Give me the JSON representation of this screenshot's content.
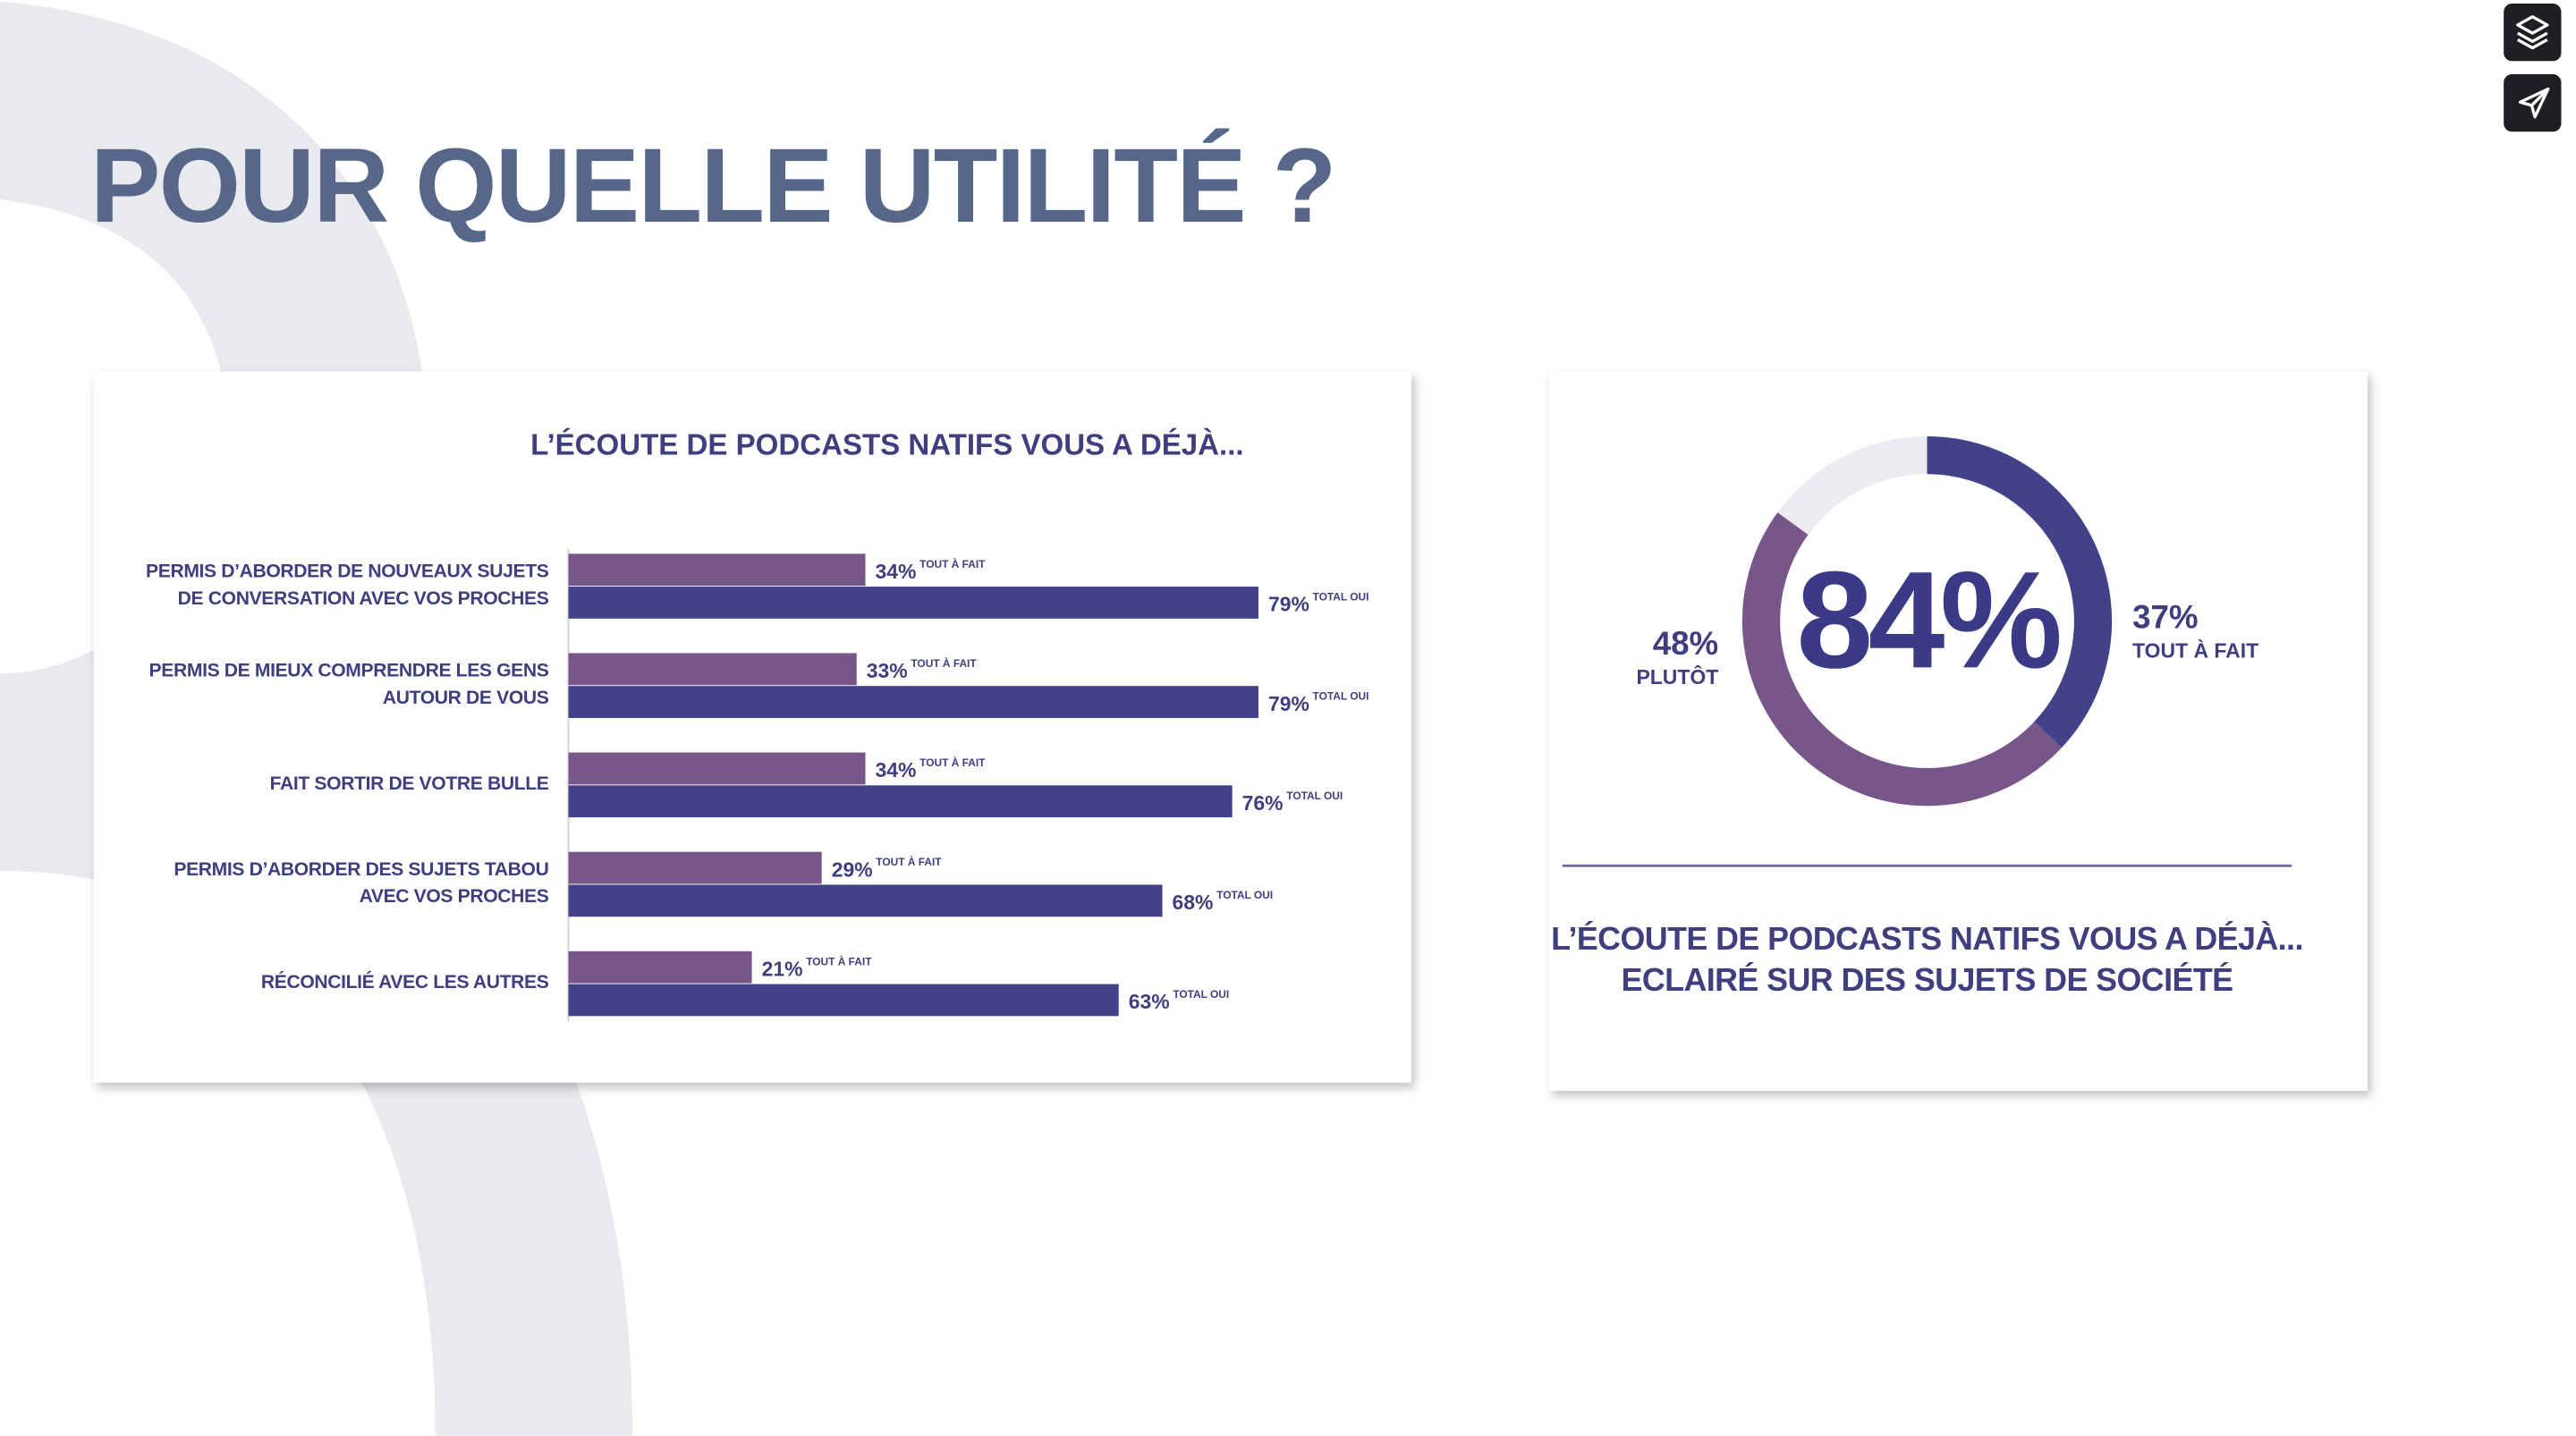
{
  "slide_title": "POUR QUELLE UTILITÉ ?",
  "chart_data": [
    {
      "type": "bar",
      "orientation": "horizontal",
      "title": "L’ÉCOUTE DE PODCASTS NATIFS VOUS A DÉJÀ...",
      "categories": [
        [
          "PERMIS D’ABORDER DE NOUVEAUX SUJETS",
          "DE CONVERSATION AVEC VOS PROCHES"
        ],
        [
          "PERMIS DE MIEUX COMPRENDRE LES GENS",
          "AUTOUR DE VOUS"
        ],
        [
          "FAIT SORTIR DE VOTRE BULLE"
        ],
        [
          "PERMIS D’ABORDER DES SUJETS TABOU",
          "AVEC VOS PROCHES"
        ],
        [
          "RÉCONCILIÉ AVEC LES AUTRES"
        ]
      ],
      "series": [
        {
          "name": "TOUT À FAIT",
          "color": "#77578a",
          "values": [
            34,
            33,
            34,
            29,
            21
          ],
          "value_labels": [
            "34%",
            "33%",
            "34%",
            "29%",
            "21%"
          ]
        },
        {
          "name": "TOTAL OUI",
          "color": "#42428a",
          "values": [
            79,
            79,
            76,
            68,
            63
          ],
          "value_labels": [
            "79%",
            "79%",
            "76%",
            "68%",
            "63%"
          ]
        }
      ]
    },
    {
      "type": "pie",
      "donut": true,
      "center_label": "84%",
      "title": [
        "L’ÉCOUTE DE PODCASTS NATIFS VOUS A DÉJÀ...",
        "ECLAIRÉ SUR DES SUJETS DE SOCIÉTÉ"
      ],
      "labels": [
        "TOUT À FAIT",
        "PLUTÔT"
      ],
      "values": [
        37,
        48
      ],
      "value_labels": [
        "37%",
        "48%"
      ],
      "colors": [
        "#42428a",
        "#77578a"
      ]
    }
  ]
}
